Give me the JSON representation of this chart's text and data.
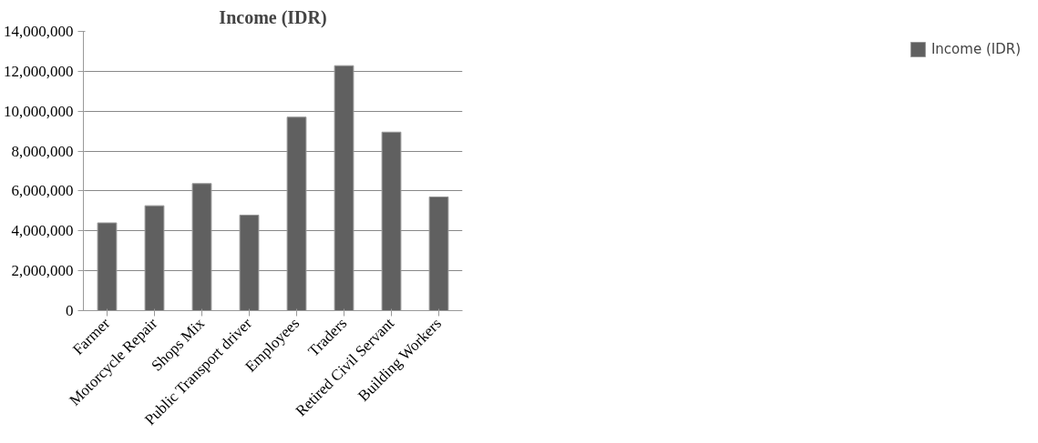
{
  "chart_data": {
    "type": "bar",
    "title": "Income (IDR)",
    "categories": [
      "Farmer",
      "Motorcycle Repair",
      "Shops Mix",
      "Public Transport driver",
      "Employees",
      "Traders",
      "Retired Civil Servant",
      "Building Workers"
    ],
    "series": [
      {
        "name": "Income (IDR)",
        "color": "#606060",
        "values": [
          4400000,
          5260000,
          6370000,
          4790000,
          9700000,
          12280000,
          8950000,
          5700000
        ]
      }
    ],
    "ylim": [
      0,
      14000000
    ],
    "yticks": [
      {
        "value": 0,
        "label": "0"
      },
      {
        "value": 2000000,
        "label": "2,000,000"
      },
      {
        "value": 4000000,
        "label": "4,000,000"
      },
      {
        "value": 6000000,
        "label": "6,000,000"
      },
      {
        "value": 8000000,
        "label": "8,000,000"
      },
      {
        "value": 10000000,
        "label": "10,000,000"
      },
      {
        "value": 12000000,
        "label": "12,000,000"
      },
      {
        "value": 14000000,
        "label": "14,000,000"
      }
    ],
    "grid": "y",
    "legend": "right"
  }
}
